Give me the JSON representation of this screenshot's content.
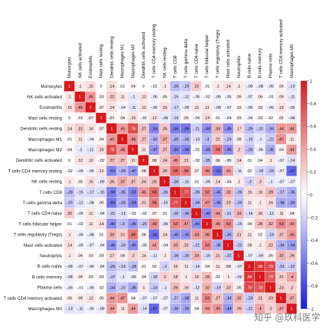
{
  "watermark": "知乎 @玖科医学",
  "chart_data": {
    "type": "heatmap",
    "title": "",
    "labels": [
      "Monocytes",
      "NK cells activated",
      "Eosinophils",
      "Mast cells resting",
      "Dendritic cells resting",
      "Macrophages M1",
      "Macrophages M2",
      "Dendritic cells activated",
      "T cells CD4 memory resting",
      "NK cells resting",
      "T cells CD8",
      "T cells gamma delta",
      "T cells CD4 naive",
      "T cells follicular helper",
      "T cells regulatory (Tregs)",
      "Mast cells activated",
      "Neutrophils",
      "B cells naive",
      "B cells memory",
      "Plasma cells",
      "T cells CD4 memory activated",
      "Macrophages M0"
    ],
    "values": [
      [
        1,
        0.1,
        0.15,
        0,
        0.14,
        0.01,
        0.04,
        0,
        -0.02,
        0.1,
        -0.29,
        -0.23,
        0.22,
        0.01,
        0.1,
        0.14,
        0.1,
        -0.08,
        -0.08,
        -0.06,
        0.06,
        -0.13
      ],
      [
        0.1,
        1,
        0.46,
        0.03,
        0.22,
        0.11,
        -0.1,
        0.12,
        -0.06,
        0.05,
        -0.15,
        -0.12,
        -0.05,
        -0.02,
        -0.06,
        -0.05,
        0.06,
        -0.07,
        0.06,
        -0.01,
        0.09,
        -0.11
      ],
      [
        0.15,
        0.46,
        1,
        0.07,
        0.14,
        -0.04,
        -0.11,
        0.12,
        -0.06,
        0.15,
        -0.17,
        -0.08,
        0.11,
        0.11,
        -0.08,
        -0.07,
        0.03,
        -0.06,
        0.03,
        -0.06,
        0.12,
        -0.06
      ],
      [
        0,
        0.03,
        0.07,
        1,
        0.07,
        0.04,
        0.15,
        -0.02,
        0.12,
        -0.09,
        -0.16,
        0.05,
        -0.04,
        0.14,
        0.01,
        -0.04,
        0.03,
        -0.04,
        0.03,
        0.02,
        0.05,
        -0.08
      ],
      [
        0.14,
        0.22,
        0.14,
        0.07,
        1,
        0.43,
        0.78,
        0.27,
        -0.53,
        0.25,
        -0.56,
        -0.59,
        -0.21,
        -0.49,
        0.33,
        -0.49,
        0.17,
        -0.29,
        -0.22,
        -0.34,
        0.44,
        0.44
      ],
      [
        0.01,
        0.11,
        -0.04,
        0.04,
        0.43,
        1,
        0.48,
        0.27,
        -0.33,
        0.37,
        -0.35,
        -0.33,
        -0.13,
        -0.3,
        0.21,
        -0.24,
        0.08,
        -0.19,
        -0.1,
        -0.22,
        0.47,
        0.11
      ],
      [
        0.04,
        -0.1,
        -0.11,
        0.15,
        0.78,
        0.48,
        1,
        0.11,
        -0.47,
        0.27,
        -0.53,
        -0.54,
        -0.02,
        -0.45,
        0.58,
        -0.49,
        0.2,
        -0.28,
        -0.06,
        -0.36,
        0.04,
        0.44
      ],
      [
        0,
        0.12,
        0.12,
        -0.02,
        0.27,
        0.27,
        0.11,
        1,
        0.08,
        0.24,
        0.45,
        0.21,
        -0.02,
        -0.25,
        0.06,
        -0.05,
        0.14,
        0.01,
        0.04,
        0.1,
        -0.07,
        -0.14
      ],
      [
        -0.02,
        -0.06,
        -0.06,
        0.12,
        -0.53,
        -0.33,
        -0.47,
        0.08,
        1,
        0.26,
        0.65,
        0.56,
        0.07,
        0.49,
        -0.62,
        0.41,
        -0.11,
        0.02,
        -0.18,
        -0.23,
        -0.07,
        -0.67
      ],
      [
        0.1,
        0.05,
        0.15,
        -0.09,
        0.25,
        0.37,
        0.27,
        0.24,
        0.26,
        1,
        -0.26,
        -0.15,
        0.01,
        -0.09,
        0.14,
        -0.04,
        0.1,
        -0.2,
        0.2,
        -0.1,
        -0.07,
        -0.07
      ],
      [
        -0.29,
        -0.15,
        -0.17,
        -0.16,
        -0.56,
        -0.35,
        -0.53,
        0.45,
        0.65,
        -0.26,
        1,
        0.77,
        -0.26,
        0.52,
        -0.45,
        0.33,
        -0.26,
        0.15,
        0.18,
        0.29,
        -0.27,
        -0.35
      ],
      [
        -0.23,
        -0.12,
        -0.08,
        0.05,
        -0.59,
        -0.33,
        -0.54,
        0.21,
        0.56,
        -0.15,
        0.77,
        1,
        -0.34,
        0.47,
        -0.45,
        0.22,
        -0.26,
        0.11,
        0.1,
        0.16,
        -0.38,
        -0.39
      ],
      [
        0.22,
        -0.05,
        0.11,
        -0.04,
        -0.21,
        -0.13,
        -0.02,
        -0.02,
        0.07,
        0.01,
        -0.26,
        -0.34,
        1,
        -0.49,
        0.43,
        -0.21,
        0.33,
        -0.14,
        0.16,
        -0.12,
        0.11,
        0.04
      ],
      [
        0.01,
        -0.02,
        0.11,
        0.14,
        -0.49,
        -0.3,
        -0.45,
        -0.25,
        0.49,
        -0.09,
        0.52,
        0.47,
        -0.49,
        1,
        0.45,
        0.52,
        -0.15,
        0.04,
        0.28,
        0.32,
        0.53,
        0.43
      ],
      [
        0.1,
        -0.06,
        -0.08,
        0.01,
        0.33,
        0.21,
        0.58,
        0.06,
        -0.62,
        0.14,
        -0.45,
        -0.45,
        0.43,
        0.45,
        1,
        -0.35,
        0.21,
        0.11,
        0.02,
        -0.19,
        0.27,
        0.45
      ],
      [
        0.14,
        -0.05,
        -0.07,
        -0.04,
        -0.49,
        -0.24,
        -0.49,
        -0.05,
        0.41,
        -0.04,
        0.33,
        0.22,
        -0.21,
        0.52,
        -0.35,
        1,
        -0.22,
        0.08,
        0.1,
        0.22,
        -0.34,
        -0.44
      ],
      [
        0.1,
        0.06,
        0.03,
        0.03,
        0.17,
        0.08,
        0.2,
        0.14,
        -0.11,
        0.1,
        -0.26,
        -0.26,
        0.33,
        -0.15,
        0.21,
        -0.22,
        1,
        -0.07,
        -0.09,
        0.05,
        0.32,
        0.26
      ],
      [
        -0.08,
        -0.07,
        -0.06,
        -0.04,
        -0.29,
        -0.19,
        -0.28,
        0.01,
        0.02,
        -0.2,
        0.15,
        0.11,
        -0.14,
        0.04,
        0.11,
        0.08,
        -0.07,
        1,
        0.88,
        0.79,
        -0.23,
        -0.22
      ],
      [
        -0.08,
        0.06,
        0.03,
        0.03,
        -0.22,
        -0.1,
        -0.06,
        0.04,
        -0.18,
        0.2,
        0.18,
        0.1,
        0.16,
        0.28,
        0.02,
        0.1,
        -0.09,
        0.88,
        1,
        0.73,
        0.21,
        0.4
      ],
      [
        -0.06,
        -0.01,
        -0.06,
        0.02,
        -0.34,
        -0.22,
        -0.36,
        0.1,
        -0.23,
        -0.1,
        0.29,
        0.16,
        -0.12,
        0.32,
        -0.19,
        0.22,
        0.05,
        0.79,
        0.73,
        1,
        0.23,
        0.2
      ],
      [
        0.06,
        0.09,
        0.12,
        0.05,
        0.44,
        0.47,
        0.04,
        -0.07,
        -0.07,
        -0.07,
        -0.27,
        -0.38,
        0.11,
        0.53,
        0.27,
        -0.34,
        0.32,
        -0.23,
        0.21,
        0.23,
        1,
        0.37
      ],
      [
        -0.13,
        -0.11,
        -0.06,
        -0.08,
        0.44,
        0.11,
        0.44,
        -0.14,
        -0.67,
        -0.07,
        -0.35,
        -0.39,
        0.04,
        0.43,
        0.45,
        -0.44,
        0.26,
        -0.22,
        0.4,
        0.2,
        0.37,
        1
      ]
    ],
    "colorbar": {
      "ticks": [
        "1",
        "0.8",
        "0.6",
        "0.4",
        "0.2",
        "0",
        "-0.2",
        "-0.4",
        "-0.6",
        "-0.8",
        "-1"
      ],
      "range": [
        -1,
        1
      ],
      "colors": {
        "positive": "#d7191c",
        "neutral": "#ffffff",
        "negative": "#1a1adf"
      }
    }
  }
}
